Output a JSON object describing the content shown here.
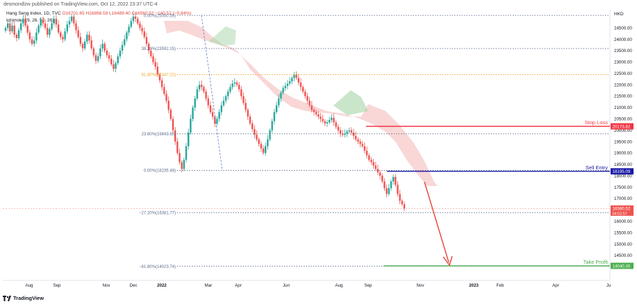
{
  "header": {
    "published": "desmondlzw published on TradingView.com, Oct 12, 2022 23:37 UTC-4"
  },
  "legend": {
    "symbol": "Hang Seng Index, 1D, TVC",
    "ohlc": "O16701.65 H16898.59 L16489.40 C16560.52 −140.52 (−0.84%)",
    "indicator": "Ichimoku (9, 26, 52, 26)"
  },
  "footer": {
    "brand": "TradingView"
  },
  "colors": {
    "bull": "#26a69a",
    "bear": "#ef5350",
    "stop_loss": "#f23645",
    "sell_entry": "#1a1aa6",
    "take_profit": "#4caf50",
    "fib_default": "#5b6e8c",
    "fib_618": "#f0a830",
    "arrow": "#e8443a",
    "cloud_bear": "#f7c6c6",
    "cloud_bull": "#a5d6a7"
  },
  "chart_data": {
    "type": "candlestick",
    "currency": "HKD",
    "ylim": [
      13400,
      25300
    ],
    "y_ticks": [
      14000,
      14500,
      15000,
      15500,
      16000,
      16500,
      17000,
      17500,
      18000,
      18500,
      19000,
      19500,
      20000,
      20500,
      21000,
      21500,
      22000,
      22500,
      23000,
      23500,
      24000,
      24500
    ],
    "y_tick_labels": [
      "14000.00",
      "14500.00",
      "15000.00",
      "15500.00",
      "16000.00",
      "16500.00",
      "17000.00",
      "17500.00",
      "18000.00",
      "18500.00",
      "19000.00",
      "19500.00",
      "20000.00",
      "20500.00",
      "21000.00",
      "21500.00",
      "22000.00",
      "22500.00",
      "23000.00",
      "23500.00",
      "24000.00",
      "24500.00"
    ],
    "x_ticks": [
      "Aug",
      "Sep",
      "Nov",
      "Dec",
      "2022",
      "Mar",
      "Apr",
      "Jun",
      "Aug",
      "Sep",
      "Nov",
      "2023",
      "Feb",
      "Apr",
      "Ju"
    ],
    "fib_levels": [
      {
        "label": "0.00%(25050.59)",
        "value": 25050.59
      },
      {
        "label": "38.20%(23592.15)",
        "value": 23592.15
      },
      {
        "label": "61.80%(22447.22)",
        "value": 22447.22
      },
      {
        "label": "23.60%(19843.65)",
        "value": 19843.65
      },
      {
        "label": "0.00%(18235.48)",
        "value": 18235.48
      },
      {
        "label": "−27.20%(16381.77)",
        "value": 16381.77
      },
      {
        "label": "−61.80%(14023.74)",
        "value": 14023.74
      }
    ],
    "levels": [
      {
        "name": "Stop Loss",
        "value": 20173.82,
        "label": "20173.82"
      },
      {
        "name": "Sell Entry",
        "value": 18195.09,
        "label": "18195.09"
      },
      {
        "name": "Take Profit",
        "value": 14040.3,
        "label": "14040.30"
      }
    ],
    "last_price": {
      "value": 16560.52,
      "label": "16560.52",
      "countdown": "04:52:57"
    },
    "closes": [
      24500,
      24700,
      24350,
      24600,
      24200,
      24050,
      24400,
      24700,
      24900,
      24600,
      24300,
      24000,
      23800,
      23950,
      24300,
      24600,
      24850,
      24700,
      24500,
      24200,
      24450,
      24700,
      24900,
      24650,
      24300,
      24100,
      24000,
      24350,
      24650,
      24800,
      25000,
      24700,
      24400,
      24100,
      23800,
      23600,
      23900,
      24200,
      23950,
      23600,
      23300,
      23050,
      23250,
      23600,
      23800,
      23500,
      23300,
      23150,
      22900,
      22700,
      22950,
      23250,
      23500,
      23750,
      24000,
      24300,
      24550,
      24800,
      25000,
      24900,
      24700,
      24500,
      24350,
      24100,
      23800,
      23500,
      23250,
      23000,
      22800,
      22450,
      22200,
      21900,
      21600,
      21300,
      20900,
      20500,
      20000,
      19500,
      19000,
      18600,
      18300,
      18700,
      19300,
      19900,
      20500,
      21000,
      21400,
      21800,
      22000,
      21900,
      21700,
      21400,
      21100,
      20800,
      20600,
      20300,
      20500,
      20800,
      21100,
      21300,
      21500,
      21700,
      21900,
      22050,
      22100,
      22000,
      21800,
      21500,
      21200,
      20900,
      20600,
      20300,
      20050,
      19800,
      19600,
      19400,
      19200,
      19000,
      19300,
      19600,
      20000,
      20400,
      20800,
      21100,
      21400,
      21650,
      21850,
      21950,
      22050,
      22150,
      22300,
      22450,
      22300,
      22100,
      21900,
      21700,
      21500,
      21300,
      21100,
      20900,
      20800,
      20700,
      20600,
      20500,
      20400,
      20300,
      20350,
      20450,
      20550,
      20350,
      20150,
      20000,
      19850,
      19800,
      19850,
      19950,
      20000,
      19900,
      19750,
      19600,
      19500,
      19400,
      19300,
      19100,
      18900,
      18700,
      18600,
      18450,
      18300,
      18150,
      18000,
      17750,
      17450,
      17200,
      17450,
      17750,
      17950,
      17600,
      17200,
      16900,
      16750,
      16560
    ]
  }
}
